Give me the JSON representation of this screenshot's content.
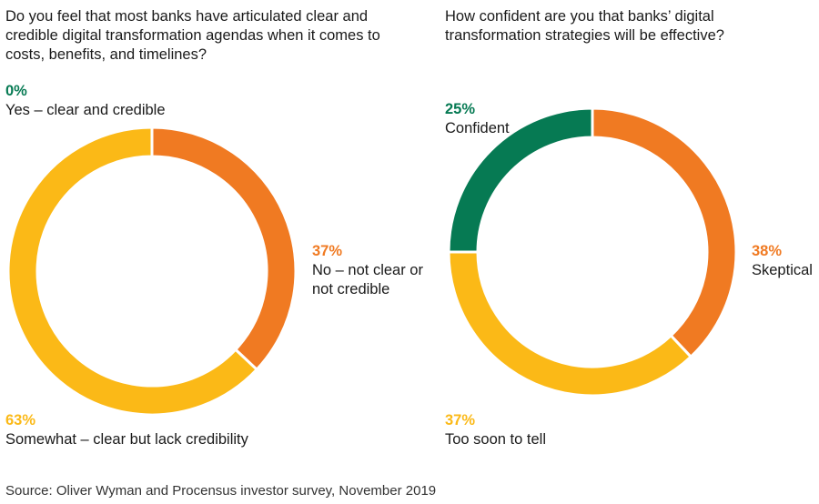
{
  "colors": {
    "green": "#067a53",
    "orange": "#f07a22",
    "yellow": "#fbb917",
    "separator": "#ffffff"
  },
  "chart_data": [
    {
      "type": "pie",
      "variant": "donut",
      "title": "Do you feel that most banks have articulated clear and credible digital transformation agendas when it comes to costs, benefits, and timelines?",
      "slices": [
        {
          "label": "Yes – clear and credible",
          "value": 0,
          "display": "0%",
          "color": "#067a53"
        },
        {
          "label": "No – not clear or not credible",
          "value": 37,
          "display": "37%",
          "color": "#f07a22"
        },
        {
          "label": "Somewhat – clear but lack credibility",
          "value": 63,
          "display": "63%",
          "color": "#fbb917"
        }
      ]
    },
    {
      "type": "pie",
      "variant": "donut",
      "title": "How confident are you that banks’ digital transformation strategies will be effective?",
      "slices": [
        {
          "label": "Skeptical",
          "value": 38,
          "display": "38%",
          "color": "#f07a22"
        },
        {
          "label": "Too soon to tell",
          "value": 37,
          "display": "37%",
          "color": "#fbb917"
        },
        {
          "label": "Confident",
          "value": 25,
          "display": "25%",
          "color": "#067a53"
        }
      ]
    }
  ],
  "source": "Source: Oliver Wyman and Procensus investor survey, November 2019"
}
